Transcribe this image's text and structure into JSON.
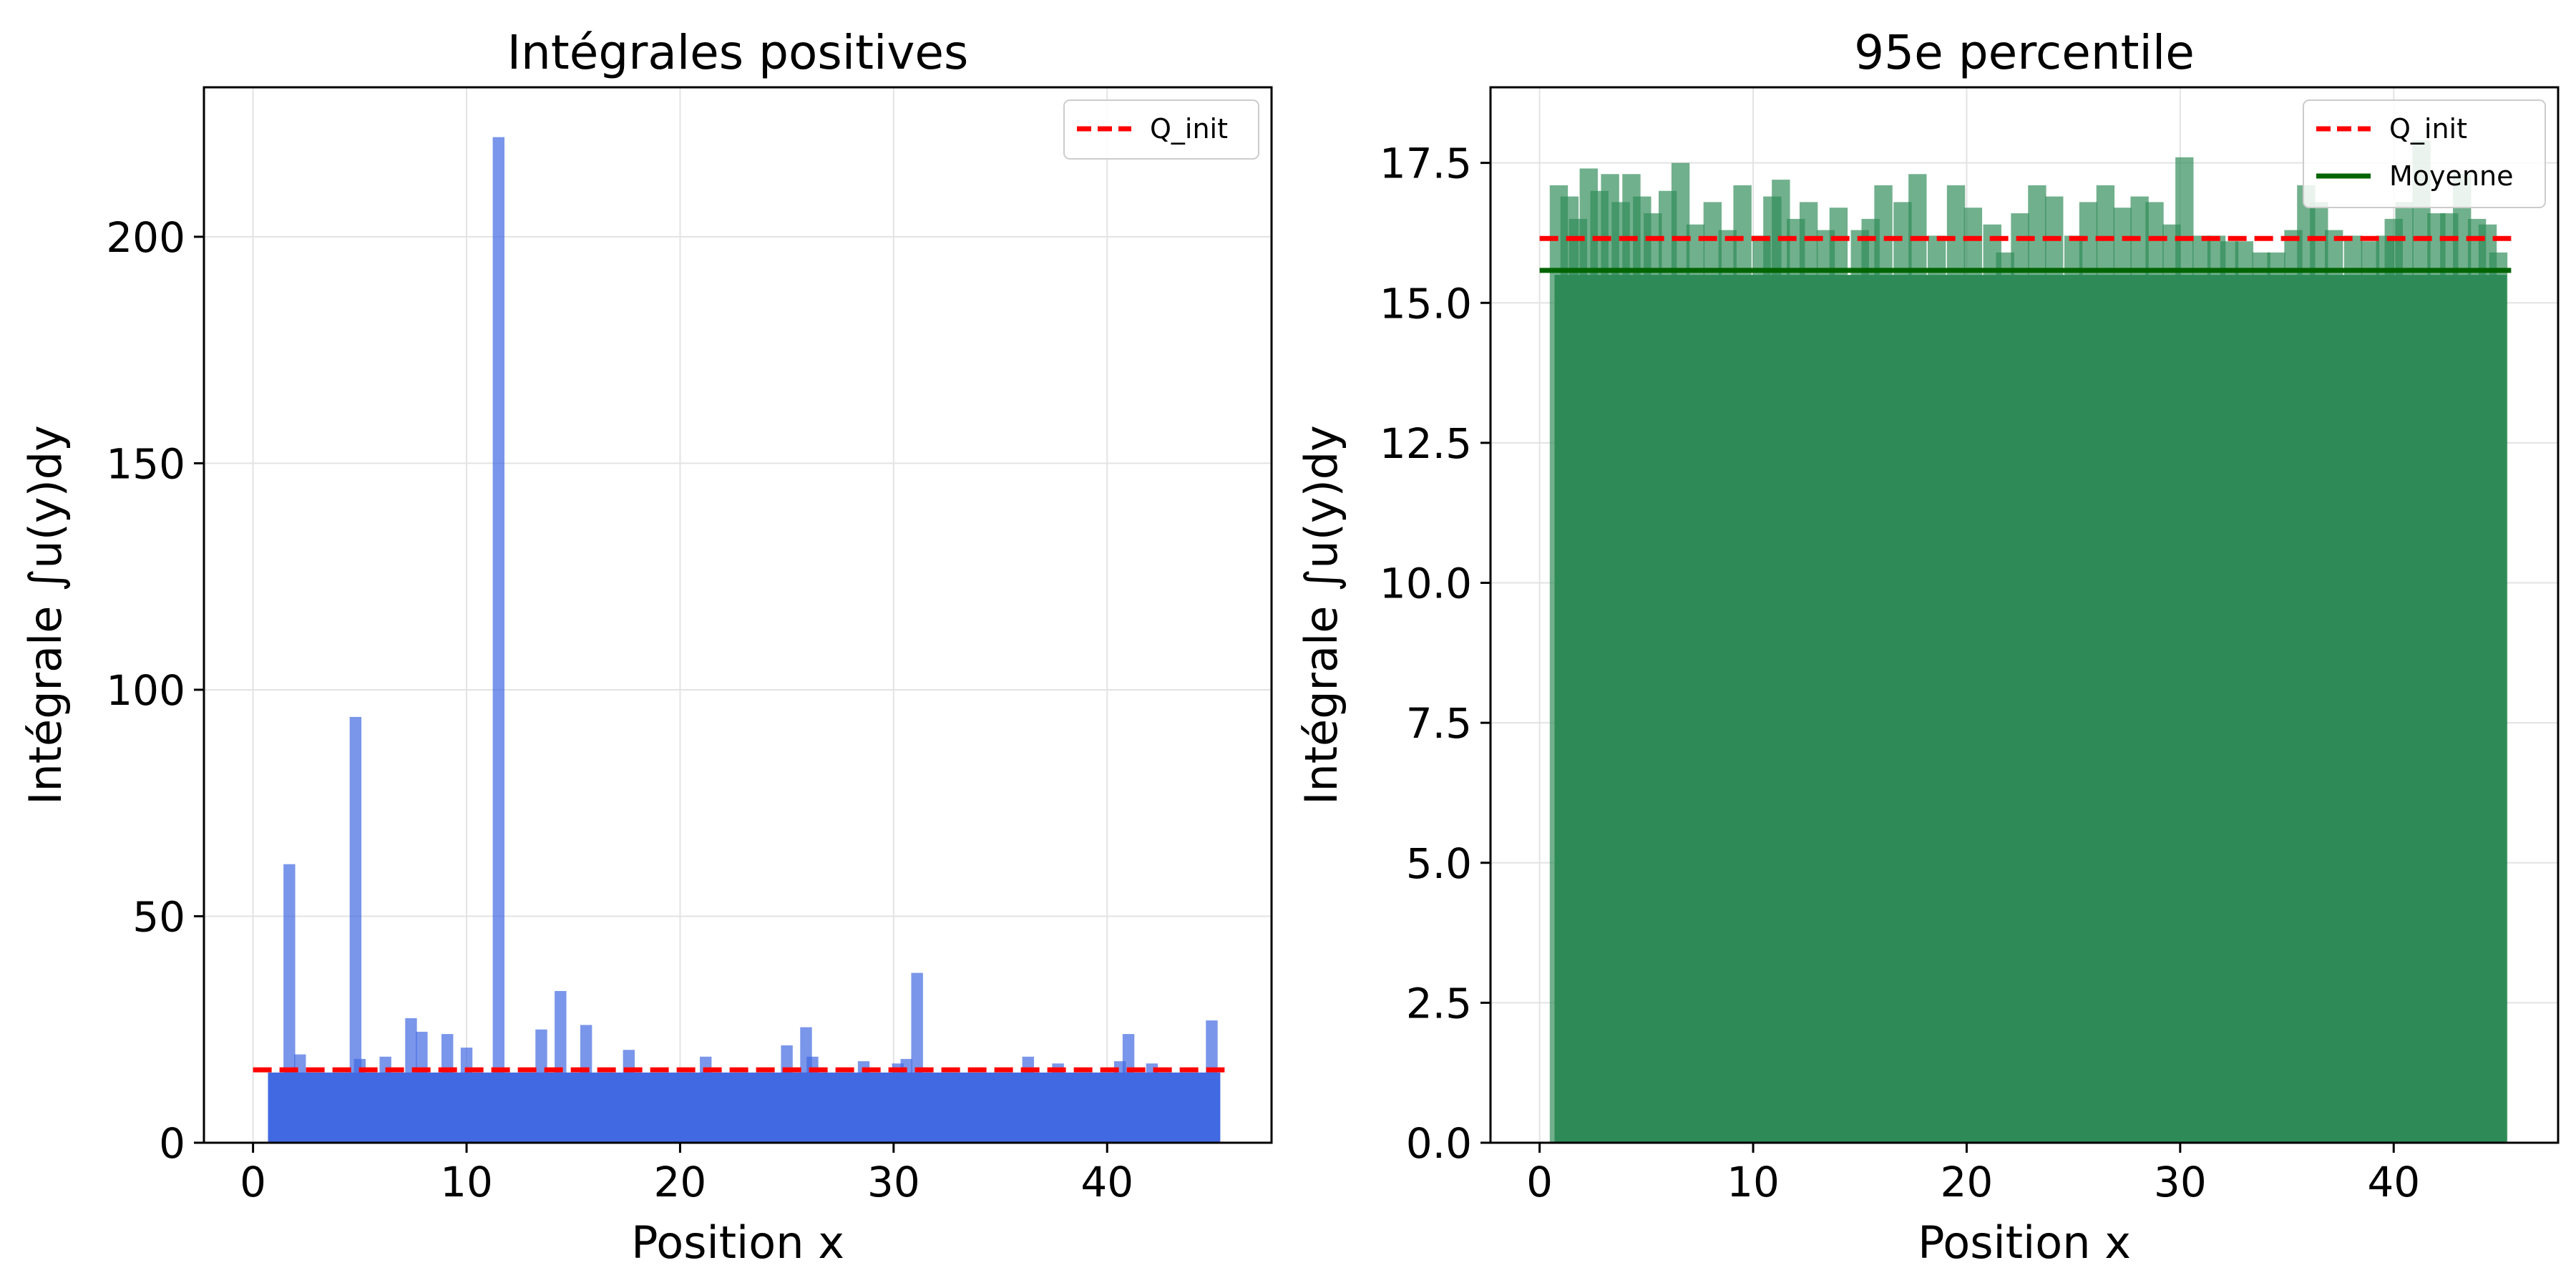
{
  "chart_data": [
    {
      "type": "bar",
      "title": "Intégrales positives",
      "xlabel": "Position x",
      "ylabel": "Intégrale ∫u(y)dy",
      "xlim": [
        -2.3,
        47.7
      ],
      "ylim": [
        0,
        233
      ],
      "xticks": [
        0,
        10,
        20,
        30,
        40
      ],
      "xtick_labels": [
        "0",
        "10",
        "20",
        "30",
        "40"
      ],
      "yticks": [
        0,
        50,
        100,
        150,
        200
      ],
      "ytick_labels": [
        "0",
        "50",
        "100",
        "150",
        "200"
      ],
      "grid": true,
      "legend": {
        "placement": "upper right",
        "entries": [
          "Q_init"
        ]
      },
      "colors": {
        "bars": "#4169e1",
        "q_init": "#ff0000"
      },
      "x_range": [
        0.7,
        45.3
      ],
      "baseline_level": 15.5,
      "bar_width": 0.55,
      "bars": [
        {
          "x": 1.7,
          "value": 61.5
        },
        {
          "x": 2.2,
          "value": 19.5
        },
        {
          "x": 4.8,
          "value": 94.0
        },
        {
          "x": 5.0,
          "value": 18.5
        },
        {
          "x": 6.2,
          "value": 19.0
        },
        {
          "x": 7.4,
          "value": 27.5
        },
        {
          "x": 7.9,
          "value": 24.5
        },
        {
          "x": 9.1,
          "value": 24.0
        },
        {
          "x": 10.0,
          "value": 21.0
        },
        {
          "x": 11.5,
          "value": 222.0
        },
        {
          "x": 13.5,
          "value": 25.0
        },
        {
          "x": 14.4,
          "value": 33.5
        },
        {
          "x": 15.6,
          "value": 26.0
        },
        {
          "x": 17.6,
          "value": 20.5
        },
        {
          "x": 21.2,
          "value": 19.0
        },
        {
          "x": 25.0,
          "value": 21.5
        },
        {
          "x": 25.9,
          "value": 25.5
        },
        {
          "x": 26.2,
          "value": 19.0
        },
        {
          "x": 28.6,
          "value": 18.0
        },
        {
          "x": 30.2,
          "value": 17.5
        },
        {
          "x": 30.6,
          "value": 18.5
        },
        {
          "x": 31.1,
          "value": 37.5
        },
        {
          "x": 36.3,
          "value": 19.0
        },
        {
          "x": 37.7,
          "value": 17.5
        },
        {
          "x": 40.6,
          "value": 18.0
        },
        {
          "x": 41.0,
          "value": 24.0
        },
        {
          "x": 42.1,
          "value": 17.5
        },
        {
          "x": 44.9,
          "value": 27.0
        }
      ],
      "q_init": 16.1,
      "q_init_x_range": [
        0,
        45.5
      ]
    },
    {
      "type": "bar",
      "title": "95e percentile",
      "xlabel": "Position x",
      "ylabel": "Intégrale ∫u(y)dy",
      "xlim": [
        -2.3,
        47.7
      ],
      "ylim": [
        0,
        18.85
      ],
      "xticks": [
        0,
        10,
        20,
        30,
        40
      ],
      "xtick_labels": [
        "0",
        "10",
        "20",
        "30",
        "40"
      ],
      "yticks": [
        0,
        2.5,
        5.0,
        7.5,
        10.0,
        12.5,
        15.0,
        17.5
      ],
      "ytick_labels": [
        "0.0",
        "2.5",
        "5.0",
        "7.5",
        "10.0",
        "12.5",
        "15.0",
        "17.5"
      ],
      "grid": true,
      "legend": {
        "placement": "upper right",
        "entries": [
          "Q_init",
          "Moyenne"
        ]
      },
      "colors": {
        "bars": "#2e8b57",
        "q_init": "#ff0000",
        "moyenne": "#006400"
      },
      "x_range": [
        0.7,
        45.3
      ],
      "baseline_level": 15.5,
      "bar_width": 0.85,
      "bars": [
        {
          "x": 0.9,
          "value": 17.1
        },
        {
          "x": 1.4,
          "value": 16.9
        },
        {
          "x": 1.8,
          "value": 16.5
        },
        {
          "x": 2.3,
          "value": 17.4
        },
        {
          "x": 2.8,
          "value": 17.0
        },
        {
          "x": 3.3,
          "value": 17.3
        },
        {
          "x": 3.8,
          "value": 16.8
        },
        {
          "x": 4.3,
          "value": 17.3
        },
        {
          "x": 4.8,
          "value": 16.9
        },
        {
          "x": 5.3,
          "value": 16.6
        },
        {
          "x": 6.0,
          "value": 17.0
        },
        {
          "x": 6.6,
          "value": 17.5
        },
        {
          "x": 7.3,
          "value": 16.4
        },
        {
          "x": 8.1,
          "value": 16.8
        },
        {
          "x": 8.8,
          "value": 16.3
        },
        {
          "x": 9.5,
          "value": 17.1
        },
        {
          "x": 10.4,
          "value": 16.2
        },
        {
          "x": 10.9,
          "value": 16.9
        },
        {
          "x": 11.3,
          "value": 17.2
        },
        {
          "x": 12.0,
          "value": 16.5
        },
        {
          "x": 12.6,
          "value": 16.8
        },
        {
          "x": 13.4,
          "value": 16.3
        },
        {
          "x": 14.0,
          "value": 16.7
        },
        {
          "x": 15.0,
          "value": 16.3
        },
        {
          "x": 15.5,
          "value": 16.5
        },
        {
          "x": 16.1,
          "value": 17.1
        },
        {
          "x": 17.0,
          "value": 16.8
        },
        {
          "x": 17.7,
          "value": 17.3
        },
        {
          "x": 18.6,
          "value": 16.2
        },
        {
          "x": 19.5,
          "value": 17.1
        },
        {
          "x": 20.3,
          "value": 16.7
        },
        {
          "x": 21.2,
          "value": 16.4
        },
        {
          "x": 21.8,
          "value": 15.9
        },
        {
          "x": 22.5,
          "value": 16.6
        },
        {
          "x": 23.3,
          "value": 17.1
        },
        {
          "x": 24.1,
          "value": 16.9
        },
        {
          "x": 25.0,
          "value": 16.2
        },
        {
          "x": 25.7,
          "value": 16.8
        },
        {
          "x": 26.5,
          "value": 17.1
        },
        {
          "x": 27.3,
          "value": 16.7
        },
        {
          "x": 28.1,
          "value": 16.9
        },
        {
          "x": 28.8,
          "value": 16.8
        },
        {
          "x": 29.6,
          "value": 16.4
        },
        {
          "x": 30.2,
          "value": 17.6
        },
        {
          "x": 31.0,
          "value": 16.2
        },
        {
          "x": 31.7,
          "value": 16.2
        },
        {
          "x": 32.3,
          "value": 16.1
        },
        {
          "x": 33.0,
          "value": 16.1
        },
        {
          "x": 33.8,
          "value": 15.9
        },
        {
          "x": 34.5,
          "value": 15.9
        },
        {
          "x": 35.3,
          "value": 16.3
        },
        {
          "x": 35.9,
          "value": 17.1
        },
        {
          "x": 36.5,
          "value": 16.8
        },
        {
          "x": 37.2,
          "value": 16.3
        },
        {
          "x": 38.1,
          "value": 16.2
        },
        {
          "x": 38.9,
          "value": 16.1
        },
        {
          "x": 39.6,
          "value": 16.2
        },
        {
          "x": 40.0,
          "value": 16.5
        },
        {
          "x": 40.5,
          "value": 16.8
        },
        {
          "x": 41.3,
          "value": 17.9
        },
        {
          "x": 42.0,
          "value": 16.6
        },
        {
          "x": 42.6,
          "value": 16.6
        },
        {
          "x": 43.2,
          "value": 17.3
        },
        {
          "x": 43.9,
          "value": 16.5
        },
        {
          "x": 44.4,
          "value": 16.4
        },
        {
          "x": 44.9,
          "value": 15.9
        }
      ],
      "q_init": 16.15,
      "moyenne": 15.58,
      "q_init_x_range": [
        0,
        45.5
      ]
    }
  ]
}
